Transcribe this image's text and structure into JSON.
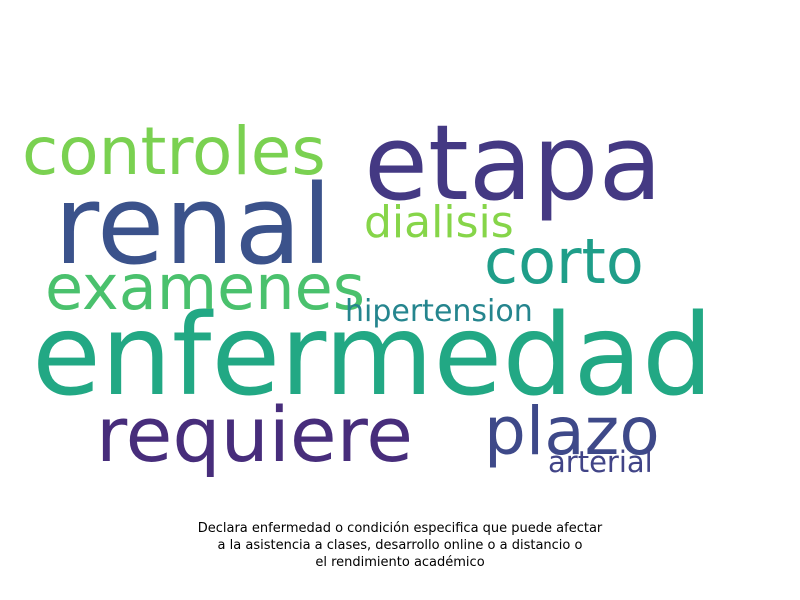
{
  "words": [
    {
      "text": "etapa",
      "color": "#443983"
    },
    {
      "text": "renal",
      "color": "#3b528b"
    },
    {
      "text": "enfermedad",
      "color": "#22a884"
    },
    {
      "text": "controles",
      "color": "#7ad151"
    },
    {
      "text": "dialisis",
      "color": "#86d549"
    },
    {
      "text": "corto",
      "color": "#1f9e89"
    },
    {
      "text": "examenes",
      "color": "#4ac16d"
    },
    {
      "text": "hipertension",
      "color": "#25858e"
    },
    {
      "text": "requiere",
      "color": "#472d7b"
    },
    {
      "text": "plazo",
      "color": "#3e4989"
    },
    {
      "text": "arterial",
      "color": "#414487"
    }
  ],
  "caption": {
    "line1": "Declara enfermedad o condición especifica que puede afectar",
    "line2": "a la asistencia a clases, desarrollo online o a distancio o",
    "line3": "el rendimiento académico"
  }
}
